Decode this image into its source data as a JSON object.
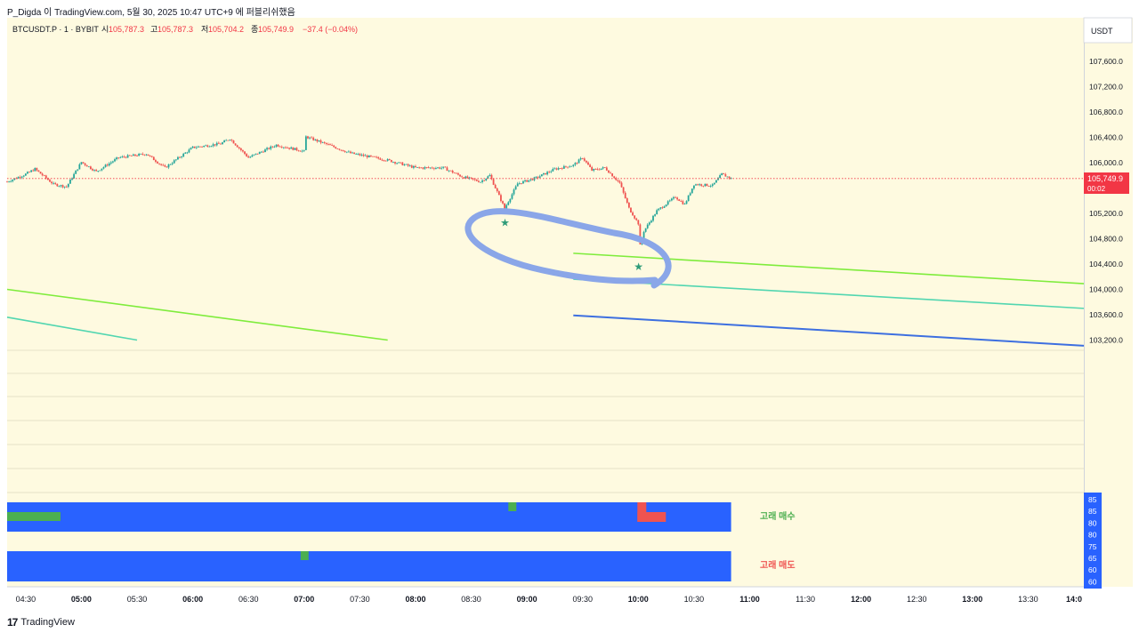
{
  "header": {
    "publish_line": "P_Digda 이 TradingView.com, 5월 30, 2025 10:47 UTC+9 에 퍼블리쉬했음"
  },
  "legend": {
    "symbol": "BTCUSDT.P · 1 · BYBIT",
    "open_label": "시",
    "open": "105,787.3",
    "high_label": "고",
    "high": "105,787.3",
    "low_label": "저",
    "low": "105,704.2",
    "close_label": "종",
    "close": "105,749.9",
    "change": "−37.4 (−0.04%)"
  },
  "price_scale": {
    "currency": "USDT",
    "ticks": [
      "107,600.0",
      "107,200.0",
      "106,800.0",
      "106,400.0",
      "106,000.0",
      "105,200.0",
      "104,800.0",
      "104,400.0",
      "104,000.0",
      "103,600.0",
      "103,200.0"
    ],
    "last_price": "105,749.9",
    "countdown": "00:02"
  },
  "oscillator_scale": {
    "ticks": [
      "85",
      "85",
      "80",
      "80",
      "75",
      "65",
      "60",
      "60"
    ]
  },
  "time_axis": {
    "ticks": [
      "04:30",
      "05:00",
      "05:30",
      "06:00",
      "06:30",
      "07:00",
      "07:30",
      "08:00",
      "08:30",
      "09:00",
      "09:30",
      "10:00",
      "10:30",
      "11:00",
      "11:30",
      "12:00",
      "12:30",
      "13:00",
      "13:30",
      "14:0"
    ],
    "bold": [
      "05:00",
      "06:00",
      "07:00",
      "08:00",
      "09:00",
      "10:00",
      "11:00",
      "12:00",
      "13:00",
      "14:0"
    ]
  },
  "indicator": {
    "buy_label": "고래 매수",
    "sell_label": "고래 매도"
  },
  "footer": {
    "brand": "TradingView",
    "brand_mark": "17"
  },
  "colors": {
    "background": "#fefae0",
    "candle_up": "#26a69a",
    "candle_down": "#ef5350",
    "trend_green": "#7fec3c",
    "trend_teal": "#52d6b0",
    "trend_blue": "#3d6fe0",
    "annotation_circle": "#8aa6e8",
    "star": "#2e9b78",
    "band": "#2962ff",
    "buy_marker": "#4caf50",
    "sell_marker": "#ef5350",
    "last_price_tag": "#f23645",
    "scale_active": "#2962ff"
  },
  "chart_data": {
    "type": "candlestick",
    "symbol": "BTCUSDT.P",
    "interval": "1",
    "exchange": "BYBIT",
    "x_axis": "time (UTC+9)",
    "x_range": [
      "04:20",
      "14:00"
    ],
    "y_range": [
      103000,
      107900
    ],
    "close_path": [
      {
        "t": "04:20",
        "p": 105700
      },
      {
        "t": "04:30",
        "p": 105820
      },
      {
        "t": "04:35",
        "p": 105900
      },
      {
        "t": "04:45",
        "p": 105660
      },
      {
        "t": "04:52",
        "p": 105620
      },
      {
        "t": "05:00",
        "p": 106010
      },
      {
        "t": "05:08",
        "p": 105860
      },
      {
        "t": "05:20",
        "p": 106080
      },
      {
        "t": "05:35",
        "p": 106140
      },
      {
        "t": "05:45",
        "p": 105920
      },
      {
        "t": "06:00",
        "p": 106240
      },
      {
        "t": "06:15",
        "p": 106300
      },
      {
        "t": "06:20",
        "p": 106380
      },
      {
        "t": "06:30",
        "p": 106080
      },
      {
        "t": "06:45",
        "p": 106280
      },
      {
        "t": "07:00",
        "p": 106180
      },
      {
        "t": "07:00",
        "p": 106420
      },
      {
        "t": "07:15",
        "p": 106260
      },
      {
        "t": "07:25",
        "p": 106150
      },
      {
        "t": "07:45",
        "p": 106040
      },
      {
        "t": "08:00",
        "p": 105920
      },
      {
        "t": "08:15",
        "p": 105920
      },
      {
        "t": "08:25",
        "p": 105780
      },
      {
        "t": "08:35",
        "p": 105700
      },
      {
        "t": "08:40",
        "p": 105800
      },
      {
        "t": "08:48",
        "p": 105280
      },
      {
        "t": "08:55",
        "p": 105670
      },
      {
        "t": "09:05",
        "p": 105760
      },
      {
        "t": "09:15",
        "p": 105900
      },
      {
        "t": "09:25",
        "p": 105960
      },
      {
        "t": "09:30",
        "p": 106080
      },
      {
        "t": "09:35",
        "p": 105880
      },
      {
        "t": "09:42",
        "p": 105920
      },
      {
        "t": "09:50",
        "p": 105680
      },
      {
        "t": "09:55",
        "p": 105280
      },
      {
        "t": "10:00",
        "p": 105040
      },
      {
        "t": "10:00",
        "p": 104580
      },
      {
        "t": "10:03",
        "p": 104920
      },
      {
        "t": "10:10",
        "p": 105240
      },
      {
        "t": "10:20",
        "p": 105460
      },
      {
        "t": "10:25",
        "p": 105340
      },
      {
        "t": "10:30",
        "p": 105660
      },
      {
        "t": "10:40",
        "p": 105640
      },
      {
        "t": "10:45",
        "p": 105820
      },
      {
        "t": "10:50",
        "p": 105750
      }
    ],
    "trendlines": [
      {
        "color": "green",
        "from": {
          "t": "04:20",
          "p": 104000
        },
        "to": {
          "t": "07:45",
          "p": 103200
        }
      },
      {
        "color": "teal",
        "from": {
          "t": "04:20",
          "p": 103560
        },
        "to": {
          "t": "05:30",
          "p": 103200
        }
      },
      {
        "color": "green",
        "from": {
          "t": "09:25",
          "p": 104570
        },
        "to": {
          "t": "14:00",
          "p": 104090
        }
      },
      {
        "color": "teal",
        "from": {
          "t": "09:25",
          "p": 104160
        },
        "to": {
          "t": "14:00",
          "p": 103700
        }
      },
      {
        "color": "blue",
        "from": {
          "t": "09:25",
          "p": 103590
        },
        "to": {
          "t": "14:00",
          "p": 103110
        }
      }
    ],
    "markers": [
      {
        "shape": "star",
        "t": "08:48",
        "p": 105050
      },
      {
        "shape": "star",
        "t": "10:00",
        "p": 104360
      }
    ],
    "annotation": {
      "shape": "ellipse",
      "around": [
        "08:48",
        "10:00"
      ]
    },
    "indicator_panel": {
      "scale": [
        60,
        85
      ],
      "rows": [
        {
          "name": "고래 매수",
          "range": [
            "04:20",
            "10:50"
          ],
          "events": [
            {
              "t": "04:20",
              "len_min": 12
            },
            {
              "t": "08:50"
            },
            {
              "t": "10:00",
              "len_min": 6
            }
          ]
        },
        {
          "name": "고래 매도",
          "range": [
            "04:20",
            "10:50"
          ],
          "events": [
            {
              "t": "07:00"
            }
          ]
        }
      ]
    }
  }
}
